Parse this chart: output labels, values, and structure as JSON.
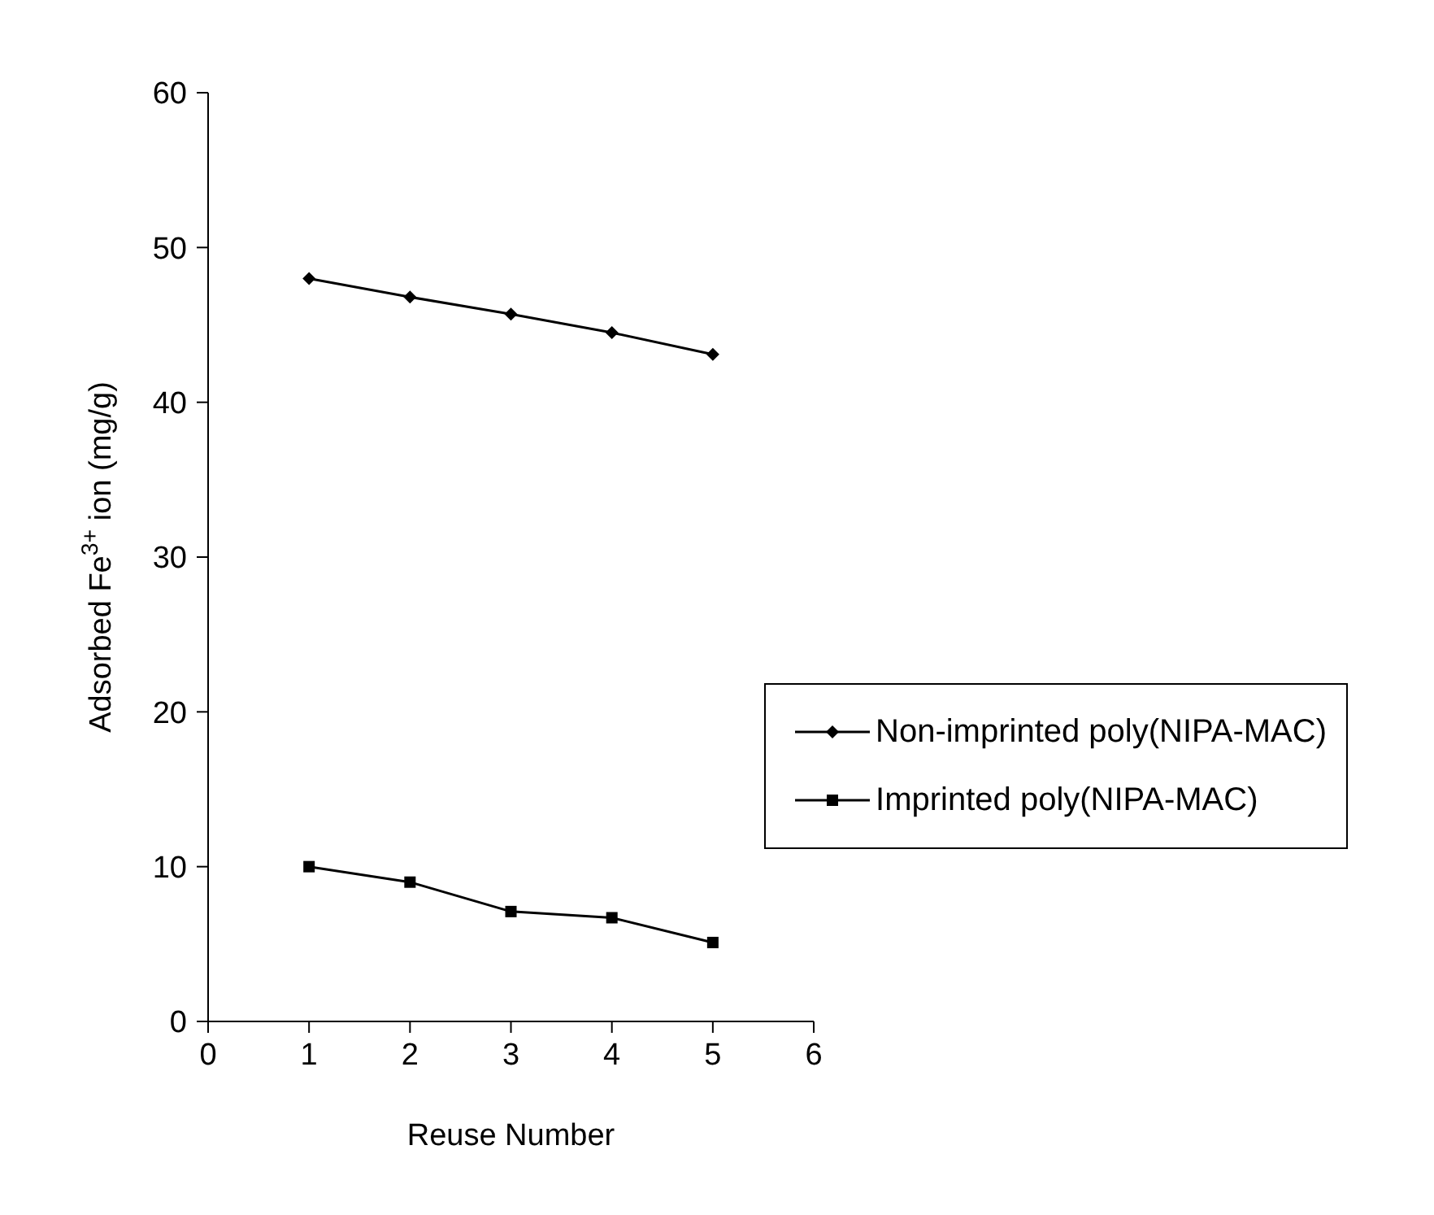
{
  "chart_data": {
    "type": "line",
    "xlabel": "Reuse Number",
    "ylabel": "Adsorbed Fe$^{3+}$ ion (mg/g)",
    "x": [
      1,
      2,
      3,
      4,
      5
    ],
    "xlim": [
      0,
      6
    ],
    "xticks": [
      0,
      1,
      2,
      3,
      4,
      5,
      6
    ],
    "ylim": [
      0,
      60
    ],
    "yticks": [
      0,
      10,
      20,
      30,
      40,
      50,
      60
    ],
    "grid": false,
    "legend": "right",
    "series": [
      {
        "name": "Non-imprinted poly(NIPA-MAC)",
        "color": "#000000",
        "marker": "diamond",
        "values": [
          48.0,
          46.8,
          45.7,
          44.5,
          43.1
        ]
      },
      {
        "name": "Imprinted poly(NIPA-MAC)",
        "color": "#000000",
        "marker": "square",
        "values": [
          10.0,
          9.0,
          7.1,
          6.7,
          5.1
        ]
      }
    ]
  }
}
